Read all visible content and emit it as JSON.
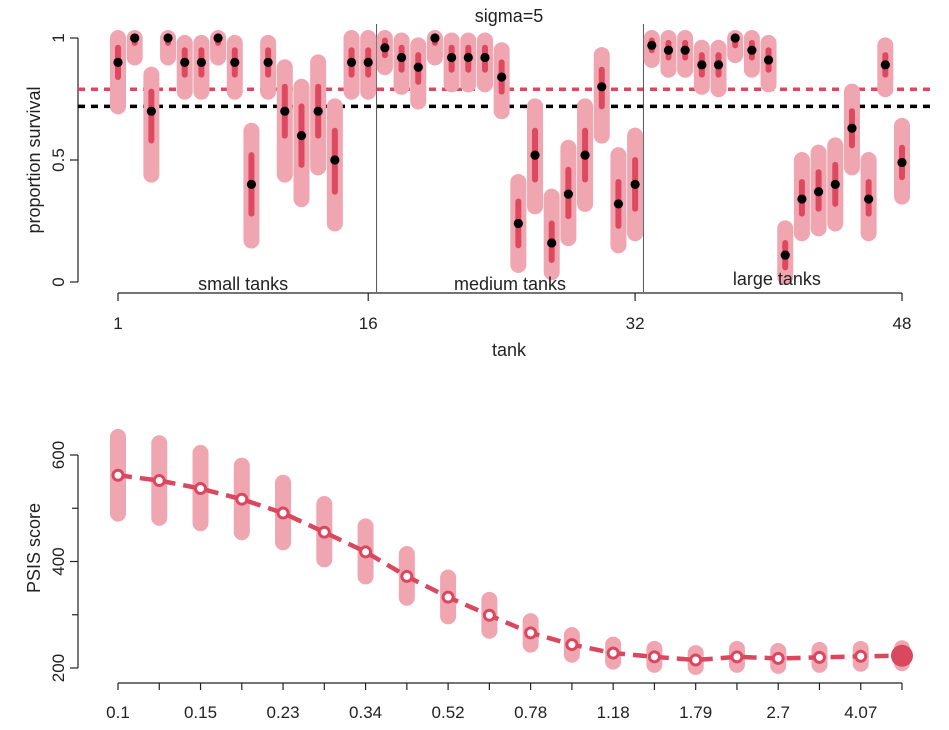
{
  "colors": {
    "interval_light": "#f0a6b1",
    "interval_dark": "#dd4a60",
    "line": "#d9485f",
    "point": "#000000",
    "raw_ref": "#d9485f",
    "model_ref": "#000000",
    "axis": "#222222"
  },
  "chart_data": [
    {
      "type": "scatter",
      "title": "sigma=5",
      "xlabel": "tank",
      "ylabel": "proportion survival",
      "xlim": [
        1,
        48
      ],
      "ylim": [
        0,
        1
      ],
      "x_ticks": [
        1,
        16,
        32,
        48
      ],
      "y_ticks": [
        0,
        0.5,
        1
      ],
      "y_tick_labels": [
        "0",
        "0.5",
        "1"
      ],
      "group_dividers": [
        16.5,
        32.5
      ],
      "group_labels": [
        {
          "label": "small tanks",
          "x": 8.5,
          "y": 0.0
        },
        {
          "label": "medium tanks",
          "x": 24.5,
          "y": 0.0
        },
        {
          "label": "large tanks",
          "x": 40.5,
          "y": 0.02
        }
      ],
      "reference_lines": [
        {
          "kind": "raw-mean",
          "y": 0.79,
          "style": "dashed",
          "color": "#d9485f"
        },
        {
          "kind": "model-mean",
          "y": 0.72,
          "style": "dashed",
          "color": "#000000"
        }
      ],
      "series": [
        {
          "x": [
            1,
            2,
            3,
            4,
            5,
            6,
            7,
            8,
            9,
            10,
            11,
            12,
            13,
            14,
            15,
            16,
            17,
            18,
            19,
            20,
            21,
            22,
            23,
            24,
            25,
            26,
            27,
            28,
            29,
            30,
            31,
            32,
            33,
            34,
            35,
            36,
            37,
            38,
            39,
            40,
            41,
            42,
            43,
            44,
            45,
            46,
            47,
            48
          ],
          "y": [
            0.9,
            1.0,
            0.7,
            1.0,
            0.9,
            0.9,
            1.0,
            0.9,
            0.4,
            0.9,
            0.7,
            0.6,
            0.7,
            0.5,
            0.9,
            0.9,
            0.96,
            0.92,
            0.88,
            1.0,
            0.92,
            0.92,
            0.92,
            0.84,
            0.24,
            0.52,
            0.16,
            0.36,
            0.52,
            0.8,
            0.32,
            0.4,
            0.97,
            0.95,
            0.95,
            0.89,
            0.89,
            1.0,
            0.95,
            0.91,
            0.11,
            0.34,
            0.37,
            0.4,
            0.63,
            0.34,
            0.89,
            0.49
          ],
          "lo89": [
            0.72,
            0.92,
            0.44,
            0.92,
            0.78,
            0.78,
            0.92,
            0.78,
            0.17,
            0.78,
            0.44,
            0.34,
            0.47,
            0.24,
            0.78,
            0.78,
            0.88,
            0.8,
            0.74,
            0.92,
            0.81,
            0.81,
            0.81,
            0.7,
            0.07,
            0.31,
            0.04,
            0.18,
            0.32,
            0.6,
            0.15,
            0.2,
            0.91,
            0.87,
            0.87,
            0.8,
            0.79,
            0.93,
            0.87,
            0.81,
            0.02,
            0.2,
            0.22,
            0.24,
            0.47,
            0.2,
            0.79,
            0.35
          ],
          "hi89": [
            1.0,
            1.0,
            0.85,
            1.0,
            0.98,
            0.98,
            1.0,
            0.98,
            0.62,
            0.98,
            0.88,
            0.8,
            0.9,
            0.72,
            1.0,
            1.0,
            1.0,
            0.99,
            0.97,
            1.0,
            0.99,
            0.99,
            0.99,
            0.95,
            0.41,
            0.72,
            0.35,
            0.55,
            0.72,
            0.93,
            0.52,
            0.6,
            1.0,
            1.0,
            1.0,
            0.96,
            0.96,
            1.0,
            1.0,
            0.98,
            0.22,
            0.5,
            0.53,
            0.56,
            0.78,
            0.5,
            0.97,
            0.64
          ],
          "lo50": [
            0.84,
            0.98,
            0.58,
            0.98,
            0.85,
            0.85,
            0.98,
            0.85,
            0.28,
            0.85,
            0.6,
            0.48,
            0.6,
            0.37,
            0.85,
            0.85,
            0.93,
            0.87,
            0.82,
            0.98,
            0.87,
            0.87,
            0.87,
            0.78,
            0.15,
            0.42,
            0.09,
            0.27,
            0.42,
            0.72,
            0.23,
            0.3,
            0.95,
            0.92,
            0.92,
            0.85,
            0.85,
            0.97,
            0.92,
            0.87,
            0.06,
            0.28,
            0.3,
            0.32,
            0.56,
            0.28,
            0.85,
            0.43
          ],
          "hi50": [
            0.96,
            1.0,
            0.78,
            1.0,
            0.95,
            0.95,
            1.0,
            0.95,
            0.52,
            0.95,
            0.8,
            0.72,
            0.8,
            0.62,
            0.95,
            0.95,
            0.99,
            0.96,
            0.93,
            1.0,
            0.96,
            0.96,
            0.96,
            0.9,
            0.33,
            0.62,
            0.24,
            0.46,
            0.62,
            0.87,
            0.41,
            0.5,
            0.99,
            0.98,
            0.98,
            0.93,
            0.93,
            1.0,
            0.98,
            0.95,
            0.16,
            0.41,
            0.45,
            0.48,
            0.7,
            0.41,
            0.93,
            0.55
          ]
        }
      ]
    },
    {
      "type": "line",
      "xlabel": "",
      "ylabel": "PSIS score",
      "ylim": [
        200,
        600
      ],
      "y_ticks": [
        200,
        400,
        600
      ],
      "x_tick_labels": [
        "0.1",
        "0.15",
        "0.23",
        "0.34",
        "0.52",
        "0.78",
        "1.18",
        "1.79",
        "2.7",
        "4.07"
      ],
      "x_tick_index": [
        0,
        2,
        4,
        6,
        8,
        10,
        12,
        14,
        16,
        18
      ],
      "highlight_index": 19,
      "series": [
        {
          "values": [
            562,
            552,
            537,
            517,
            491,
            455,
            418,
            372,
            333,
            299,
            266,
            244,
            228,
            221,
            215,
            221,
            218,
            220,
            222,
            223
          ],
          "lo89": [
            490,
            482,
            472,
            455,
            436,
            404,
            372,
            332,
            297,
            270,
            244,
            225,
            212,
            206,
            202,
            206,
            204,
            206,
            208,
            209
          ],
          "hi89": [
            634,
            622,
            604,
            580,
            548,
            508,
            466,
            414,
            370,
            328,
            288,
            262,
            244,
            236,
            228,
            236,
            232,
            234,
            236,
            237
          ]
        }
      ]
    }
  ]
}
